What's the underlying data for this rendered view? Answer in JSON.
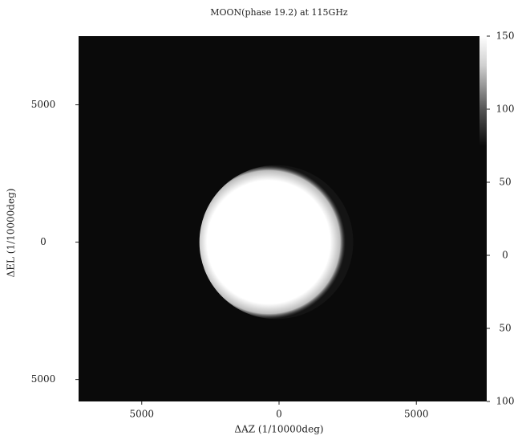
{
  "chart_data": {
    "type": "heatmap",
    "title": "MOON(phase  19.2) at 115GHz",
    "x_label": "ΔAZ (1/10000deg)",
    "y_label": "ΔEL (1/10000deg)",
    "xlim": [
      -7300,
      7300
    ],
    "ylim": [
      -5800,
      7500
    ],
    "xticks": [
      {
        "value": -5000,
        "label": "5000"
      },
      0,
      5000
    ],
    "yticks": [
      {
        "value": -5000,
        "label": "5000"
      },
      0,
      5000
    ],
    "y2lim": [
      -100,
      150
    ],
    "y2ticks": [
      {
        "value": -100,
        "label": "100"
      },
      {
        "value": -50,
        "label": "50"
      },
      0,
      50,
      100,
      150
    ],
    "background": "#0a0a0a",
    "disc": {
      "x": -100,
      "y": 0,
      "radius": 2800,
      "color": "#ffffff"
    }
  }
}
